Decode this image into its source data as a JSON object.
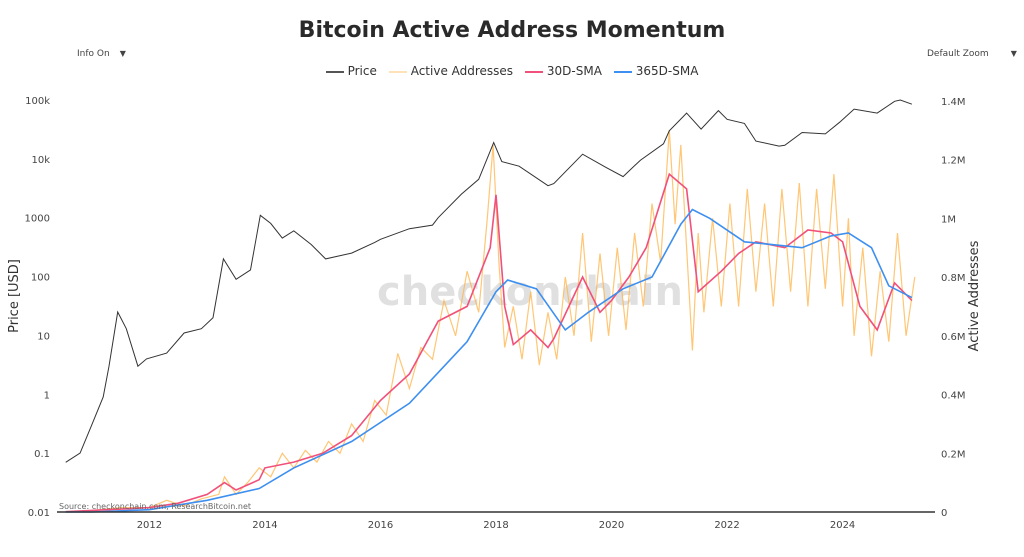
{
  "chart_data": {
    "type": "line",
    "title": "Bitcoin Active Address Momentum",
    "controls": {
      "info": "Info On",
      "zoom": "Default Zoom",
      "arrow": "▼"
    },
    "legend": [
      {
        "name": "Price",
        "color": "#333333"
      },
      {
        "name": "Active Addresses",
        "color": "#ffd9a0"
      },
      {
        "name": "30D-SMA",
        "color": "#f0507a"
      },
      {
        "name": "365D-SMA",
        "color": "#3d8ff0"
      }
    ],
    "ylabel_left": "Price [USD]",
    "ylabel_right": "Active Addresses",
    "y_left_scale": "log",
    "y_left_range": [
      0.01,
      100000
    ],
    "y_right_range": [
      0,
      1430000
    ],
    "x_range": [
      2010.4,
      2025.6
    ],
    "x_ticks": [
      2012,
      2014,
      2016,
      2018,
      2020,
      2022,
      2024
    ],
    "x_tick_labels": [
      "2012",
      "2014",
      "2016",
      "2018",
      "2020",
      "2022",
      "2024"
    ],
    "y_left_ticks": [
      0.01,
      0.1,
      1,
      10,
      100,
      1000,
      10000,
      100000
    ],
    "y_left_tick_labels": [
      "0.01",
      "0.1",
      "1",
      "10",
      "100",
      "1000",
      "10k",
      "100k"
    ],
    "y_right_ticks": [
      0,
      200000,
      400000,
      600000,
      800000,
      1000000,
      1200000,
      1400000
    ],
    "y_right_tick_labels": [
      "0",
      "0.2M",
      "0.4M",
      "0.6M",
      "0.8M",
      "1M",
      "1.2M",
      "1.4M"
    ],
    "watermark": "checkonchain",
    "source": "Source: checkonchain.com, ResearchBitcoin.net",
    "colors": {
      "price": "#333333",
      "active": "#ffb347",
      "sma30": "#f0507a",
      "sma365": "#3d8ff0"
    },
    "series": {
      "price": [
        [
          2010.55,
          0.07
        ],
        [
          2010.8,
          0.1
        ],
        [
          2011.0,
          0.3
        ],
        [
          2011.2,
          0.9
        ],
        [
          2011.3,
          3
        ],
        [
          2011.45,
          25
        ],
        [
          2011.6,
          13
        ],
        [
          2011.8,
          3
        ],
        [
          2011.95,
          4
        ],
        [
          2012.3,
          5
        ],
        [
          2012.6,
          11
        ],
        [
          2012.9,
          13
        ],
        [
          2013.1,
          20
        ],
        [
          2013.28,
          200
        ],
        [
          2013.5,
          90
        ],
        [
          2013.75,
          130
        ],
        [
          2013.92,
          1100
        ],
        [
          2014.1,
          800
        ],
        [
          2014.3,
          450
        ],
        [
          2014.5,
          600
        ],
        [
          2014.8,
          350
        ],
        [
          2015.05,
          200
        ],
        [
          2015.5,
          250
        ],
        [
          2015.9,
          380
        ],
        [
          2016.0,
          430
        ],
        [
          2016.5,
          650
        ],
        [
          2016.9,
          750
        ],
        [
          2017.0,
          1000
        ],
        [
          2017.4,
          2500
        ],
        [
          2017.7,
          4500
        ],
        [
          2017.96,
          19000
        ],
        [
          2018.1,
          9000
        ],
        [
          2018.4,
          7500
        ],
        [
          2018.9,
          3500
        ],
        [
          2019.0,
          3800
        ],
        [
          2019.5,
          12000
        ],
        [
          2019.9,
          7200
        ],
        [
          2020.2,
          5000
        ],
        [
          2020.5,
          9500
        ],
        [
          2020.9,
          18000
        ],
        [
          2021.0,
          30000
        ],
        [
          2021.3,
          60000
        ],
        [
          2021.55,
          32000
        ],
        [
          2021.85,
          66000
        ],
        [
          2022.0,
          47000
        ],
        [
          2022.3,
          40000
        ],
        [
          2022.5,
          20000
        ],
        [
          2022.9,
          16500
        ],
        [
          2023.0,
          17000
        ],
        [
          2023.3,
          28000
        ],
        [
          2023.7,
          26500
        ],
        [
          2023.95,
          42000
        ],
        [
          2024.2,
          70000
        ],
        [
          2024.6,
          60000
        ],
        [
          2024.9,
          95000
        ],
        [
          2025.0,
          100000
        ],
        [
          2025.2,
          85000
        ]
      ],
      "active_addresses": [
        [
          2010.55,
          1000
        ],
        [
          2011.0,
          5000
        ],
        [
          2011.5,
          15000
        ],
        [
          2012.0,
          15000
        ],
        [
          2012.3,
          40000
        ],
        [
          2012.6,
          20000
        ],
        [
          2012.9,
          45000
        ],
        [
          2013.2,
          60000
        ],
        [
          2013.3,
          120000
        ],
        [
          2013.5,
          60000
        ],
        [
          2013.7,
          100000
        ],
        [
          2013.9,
          150000
        ],
        [
          2014.1,
          120000
        ],
        [
          2014.3,
          200000
        ],
        [
          2014.5,
          150000
        ],
        [
          2014.7,
          210000
        ],
        [
          2014.9,
          170000
        ],
        [
          2015.1,
          240000
        ],
        [
          2015.3,
          200000
        ],
        [
          2015.5,
          300000
        ],
        [
          2015.7,
          240000
        ],
        [
          2015.9,
          380000
        ],
        [
          2016.1,
          330000
        ],
        [
          2016.3,
          540000
        ],
        [
          2016.5,
          420000
        ],
        [
          2016.7,
          560000
        ],
        [
          2016.9,
          520000
        ],
        [
          2017.1,
          720000
        ],
        [
          2017.3,
          600000
        ],
        [
          2017.5,
          820000
        ],
        [
          2017.7,
          680000
        ],
        [
          2017.85,
          1000000
        ],
        [
          2017.95,
          1250000
        ],
        [
          2018.05,
          850000
        ],
        [
          2018.15,
          560000
        ],
        [
          2018.3,
          700000
        ],
        [
          2018.45,
          520000
        ],
        [
          2018.6,
          750000
        ],
        [
          2018.75,
          500000
        ],
        [
          2018.9,
          680000
        ],
        [
          2019.05,
          520000
        ],
        [
          2019.2,
          800000
        ],
        [
          2019.35,
          600000
        ],
        [
          2019.5,
          950000
        ],
        [
          2019.65,
          580000
        ],
        [
          2019.8,
          880000
        ],
        [
          2019.95,
          600000
        ],
        [
          2020.1,
          900000
        ],
        [
          2020.25,
          620000
        ],
        [
          2020.4,
          950000
        ],
        [
          2020.55,
          700000
        ],
        [
          2020.7,
          1050000
        ],
        [
          2020.85,
          850000
        ],
        [
          2021.0,
          1300000
        ],
        [
          2021.1,
          980000
        ],
        [
          2021.2,
          1250000
        ],
        [
          2021.3,
          900000
        ],
        [
          2021.4,
          550000
        ],
        [
          2021.5,
          950000
        ],
        [
          2021.6,
          680000
        ],
        [
          2021.75,
          1000000
        ],
        [
          2021.9,
          700000
        ],
        [
          2022.05,
          1050000
        ],
        [
          2022.2,
          700000
        ],
        [
          2022.35,
          1100000
        ],
        [
          2022.5,
          750000
        ],
        [
          2022.65,
          1050000
        ],
        [
          2022.8,
          700000
        ],
        [
          2022.95,
          1100000
        ],
        [
          2023.1,
          750000
        ],
        [
          2023.25,
          1120000
        ],
        [
          2023.4,
          700000
        ],
        [
          2023.55,
          1100000
        ],
        [
          2023.7,
          760000
        ],
        [
          2023.85,
          1150000
        ],
        [
          2024.0,
          700000
        ],
        [
          2024.1,
          1000000
        ],
        [
          2024.2,
          600000
        ],
        [
          2024.35,
          900000
        ],
        [
          2024.5,
          530000
        ],
        [
          2024.65,
          820000
        ],
        [
          2024.8,
          580000
        ],
        [
          2024.95,
          950000
        ],
        [
          2025.1,
          600000
        ],
        [
          2025.25,
          800000
        ]
      ],
      "sma30": [
        [
          2010.55,
          1000
        ],
        [
          2011.5,
          10000
        ],
        [
          2012.0,
          15000
        ],
        [
          2012.5,
          30000
        ],
        [
          2013.0,
          60000
        ],
        [
          2013.3,
          100000
        ],
        [
          2013.5,
          75000
        ],
        [
          2013.9,
          110000
        ],
        [
          2014.0,
          150000
        ],
        [
          2014.5,
          170000
        ],
        [
          2015.0,
          200000
        ],
        [
          2015.5,
          260000
        ],
        [
          2016.0,
          380000
        ],
        [
          2016.5,
          470000
        ],
        [
          2017.0,
          650000
        ],
        [
          2017.5,
          700000
        ],
        [
          2017.9,
          900000
        ],
        [
          2018.0,
          1080000
        ],
        [
          2018.15,
          700000
        ],
        [
          2018.3,
          570000
        ],
        [
          2018.6,
          620000
        ],
        [
          2018.9,
          560000
        ],
        [
          2019.0,
          590000
        ],
        [
          2019.5,
          800000
        ],
        [
          2019.8,
          680000
        ],
        [
          2020.0,
          720000
        ],
        [
          2020.3,
          800000
        ],
        [
          2020.6,
          900000
        ],
        [
          2021.0,
          1150000
        ],
        [
          2021.3,
          1100000
        ],
        [
          2021.5,
          750000
        ],
        [
          2021.9,
          820000
        ],
        [
          2022.2,
          880000
        ],
        [
          2022.5,
          920000
        ],
        [
          2023.0,
          900000
        ],
        [
          2023.4,
          960000
        ],
        [
          2023.8,
          950000
        ],
        [
          2024.0,
          920000
        ],
        [
          2024.3,
          700000
        ],
        [
          2024.6,
          620000
        ],
        [
          2024.9,
          780000
        ],
        [
          2025.2,
          720000
        ]
      ],
      "sma365": [
        [
          2010.55,
          0
        ],
        [
          2011.0,
          0
        ],
        [
          2012.0,
          8000
        ],
        [
          2013.0,
          40000
        ],
        [
          2013.9,
          80000
        ],
        [
          2014.5,
          150000
        ],
        [
          2015.5,
          240000
        ],
        [
          2016.5,
          370000
        ],
        [
          2017.5,
          580000
        ],
        [
          2018.0,
          750000
        ],
        [
          2018.2,
          790000
        ],
        [
          2018.7,
          760000
        ],
        [
          2019.2,
          620000
        ],
        [
          2019.6,
          680000
        ],
        [
          2020.2,
          760000
        ],
        [
          2020.7,
          800000
        ],
        [
          2021.2,
          980000
        ],
        [
          2021.4,
          1030000
        ],
        [
          2021.7,
          1000000
        ],
        [
          2022.3,
          920000
        ],
        [
          2022.8,
          910000
        ],
        [
          2023.3,
          900000
        ],
        [
          2023.8,
          940000
        ],
        [
          2024.1,
          950000
        ],
        [
          2024.5,
          900000
        ],
        [
          2024.8,
          770000
        ],
        [
          2025.2,
          730000
        ]
      ]
    }
  }
}
